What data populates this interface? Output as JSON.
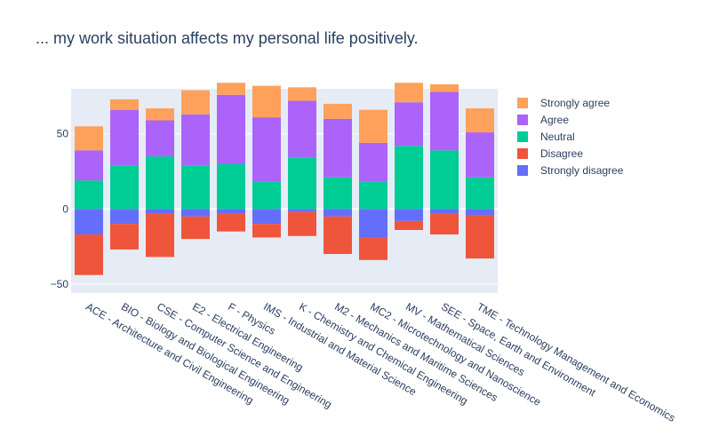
{
  "chart_data": {
    "type": "bar",
    "barmode": "relative",
    "title": "... my work situation affects my personal life positively.",
    "xlabel": "",
    "ylabel": "",
    "ylim": [
      -56,
      80
    ],
    "yticks": [
      -50,
      0,
      50
    ],
    "grid": true,
    "legend_position": "top-right",
    "categories": [
      "ACE - Architecture and Civil Engineering",
      "BIO - Biology and Biological Engineering",
      "CSE - Computer Science and Engineering",
      "E2 - Electrical Engineering",
      "F - Physics",
      "IMS - Industrial and Material Science",
      "K - Chemistry and Chemical Engineering",
      "M2 - Mechanics and Maritime Sciences",
      "MC2 - Microtechnology and Nanoscience",
      "MV - Mathematical Sciences",
      "SEE - Space, Earth and Environment",
      "TME - Technology Management and Economics"
    ],
    "series": [
      {
        "name": "Strongly disagree",
        "color": "#636efa",
        "values": [
          -17,
          -10,
          -3,
          -5,
          -3,
          -10,
          -2,
          -5,
          -19,
          -8,
          -3,
          -4
        ]
      },
      {
        "name": "Disagree",
        "color": "#ef553b",
        "values": [
          -27,
          -17,
          -29,
          -15,
          -12,
          -9,
          -16,
          -25,
          -15,
          -6,
          -14,
          -29
        ]
      },
      {
        "name": "Neutral",
        "color": "#00cc96",
        "values": [
          19,
          29,
          35,
          29,
          30,
          18,
          34,
          21,
          18,
          42,
          39,
          21
        ]
      },
      {
        "name": "Agree",
        "color": "#ab63fa",
        "values": [
          20,
          37,
          24,
          34,
          46,
          43,
          38,
          39,
          26,
          29,
          39,
          30
        ]
      },
      {
        "name": "Strongly agree",
        "color": "#ffa15a",
        "values": [
          16,
          7,
          8,
          16,
          8,
          21,
          9,
          10,
          22,
          13,
          5,
          16
        ]
      }
    ]
  }
}
